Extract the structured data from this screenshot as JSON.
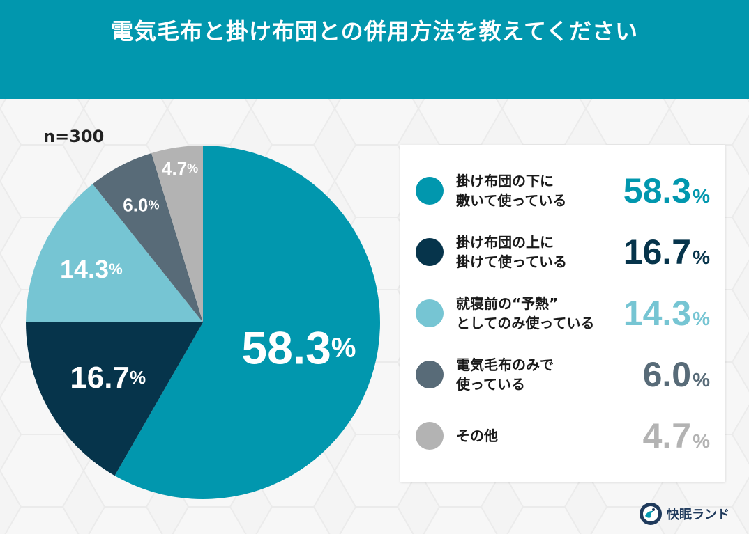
{
  "title": "電気毛布と掛け布団との併用方法を教えてください",
  "sample_size": "n=300",
  "percent_sign": "%",
  "brand": {
    "name": "快眠ランド"
  },
  "chart_data": {
    "type": "pie",
    "start_angle_deg": 0,
    "direction": "clockwise",
    "slices": [
      {
        "label_lines": [
          "掛け布団の下に",
          "敷いて使っている"
        ],
        "value": 58.3,
        "display": "58.3",
        "color": "#0197ae"
      },
      {
        "label_lines": [
          "掛け布団の上に",
          "掛けて使っている"
        ],
        "value": 16.7,
        "display": "16.7",
        "color": "#06344b"
      },
      {
        "label_lines": [
          "就寝前の“予熱”",
          "としてのみ使っている"
        ],
        "value": 14.3,
        "display": "14.3",
        "color": "#76c5d3"
      },
      {
        "label_lines": [
          "電気毛布のみで",
          "使っている"
        ],
        "value": 6.0,
        "display": "6.0",
        "color": "#586b78"
      },
      {
        "label_lines": [
          "その他"
        ],
        "value": 4.7,
        "display": "4.7",
        "color": "#b3b3b3"
      }
    ]
  }
}
